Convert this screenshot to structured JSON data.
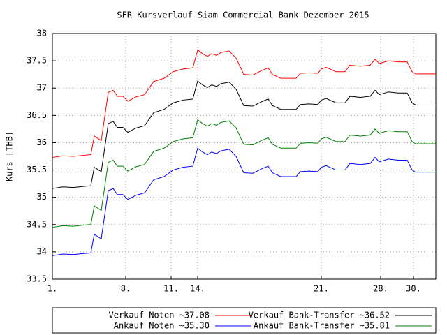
{
  "chart_data": {
    "type": "line",
    "title": "SFR Kursverlauf Siam Commercial Bank Dezember 2015",
    "y_label": "Kurs [THB]",
    "x": [
      0,
      3,
      6,
      9,
      11,
      12,
      14,
      16,
      17.4,
      18.6,
      20.2,
      21.6,
      24,
      26.4,
      29,
      32,
      34.6,
      37.4,
      40.2,
      41.6,
      43,
      44.4,
      45.6,
      47,
      48.2,
      50.6,
      52.6,
      54.8,
      57.4,
      60.2,
      61.8,
      63,
      65.4,
      69.8,
      71,
      73.6,
      76,
      77,
      78.4,
      81.2,
      83.8,
      85.2,
      88.2,
      91,
      92.4,
      93.6,
      96.2,
      99,
      101.6,
      103,
      104,
      109.8
    ],
    "series": [
      {
        "name": "Verkauf Noten ~37.08",
        "color": "#ff0000",
        "values": [
          35.73,
          35.76,
          35.75,
          35.77,
          35.78,
          36.12,
          36.04,
          36.92,
          36.96,
          36.85,
          36.85,
          36.76,
          36.84,
          36.88,
          37.12,
          37.18,
          37.3,
          37.35,
          37.37,
          37.7,
          37.63,
          37.58,
          37.63,
          37.6,
          37.65,
          37.68,
          37.55,
          37.25,
          37.24,
          37.33,
          37.37,
          37.25,
          37.18,
          37.18,
          37.27,
          37.28,
          37.27,
          37.35,
          37.38,
          37.3,
          37.3,
          37.42,
          37.4,
          37.42,
          37.53,
          37.45,
          37.5,
          37.48,
          37.48,
          37.3,
          37.26,
          37.26
        ]
      },
      {
        "name": "Verkauf Bank-Transfer ~36.52",
        "color": "#000000",
        "values": [
          35.16,
          35.19,
          35.18,
          35.2,
          35.21,
          35.55,
          35.47,
          36.35,
          36.39,
          36.28,
          36.28,
          36.19,
          36.27,
          36.31,
          36.55,
          36.61,
          36.73,
          36.78,
          36.8,
          37.13,
          37.06,
          37.01,
          37.06,
          37.03,
          37.08,
          37.11,
          36.98,
          36.68,
          36.67,
          36.76,
          36.8,
          36.68,
          36.61,
          36.61,
          36.7,
          36.71,
          36.7,
          36.78,
          36.81,
          36.73,
          36.73,
          36.85,
          36.83,
          36.85,
          36.96,
          36.88,
          36.93,
          36.91,
          36.91,
          36.73,
          36.69,
          36.69
        ]
      },
      {
        "name": "Ankauf Noten ~35.30",
        "color": "#0000ff",
        "values": [
          33.93,
          33.96,
          33.95,
          33.97,
          33.98,
          34.32,
          34.24,
          35.12,
          35.16,
          35.05,
          35.05,
          34.96,
          35.04,
          35.08,
          35.32,
          35.38,
          35.5,
          35.55,
          35.57,
          35.9,
          35.83,
          35.78,
          35.83,
          35.8,
          35.85,
          35.88,
          35.75,
          35.45,
          35.44,
          35.53,
          35.57,
          35.45,
          35.38,
          35.38,
          35.47,
          35.48,
          35.47,
          35.55,
          35.58,
          35.5,
          35.5,
          35.62,
          35.6,
          35.62,
          35.73,
          35.65,
          35.7,
          35.68,
          35.68,
          35.5,
          35.46,
          35.46
        ]
      },
      {
        "name": "Ankauf Bank-Transfer ~35.81",
        "color": "#008000",
        "values": [
          34.45,
          34.48,
          34.47,
          34.49,
          34.5,
          34.84,
          34.76,
          35.64,
          35.68,
          35.57,
          35.57,
          35.48,
          35.56,
          35.6,
          35.84,
          35.9,
          36.02,
          36.07,
          36.09,
          36.42,
          36.35,
          36.3,
          36.35,
          36.32,
          36.37,
          36.4,
          36.27,
          35.97,
          35.96,
          36.05,
          36.09,
          35.97,
          35.9,
          35.9,
          35.99,
          36.0,
          35.99,
          36.07,
          36.1,
          36.02,
          36.02,
          36.14,
          36.12,
          36.14,
          36.25,
          36.17,
          36.22,
          36.2,
          36.2,
          36.02,
          35.98,
          35.98
        ]
      }
    ],
    "xlim": [
      0,
      109.8
    ],
    "xticks": [
      {
        "value": 0,
        "label": "1."
      },
      {
        "value": 21,
        "label": "8."
      },
      {
        "value": 34,
        "label": "11."
      },
      {
        "value": 41.6,
        "label": "14."
      },
      {
        "value": 77,
        "label": "21."
      },
      {
        "value": 94,
        "label": "28."
      },
      {
        "value": 103.4,
        "label": "30."
      }
    ],
    "ylim": [
      33.5,
      38
    ],
    "yticks": [
      33.5,
      34,
      34.5,
      35,
      35.5,
      36,
      36.5,
      37,
      37.5,
      38
    ],
    "grid": true,
    "legend": "bottom"
  }
}
